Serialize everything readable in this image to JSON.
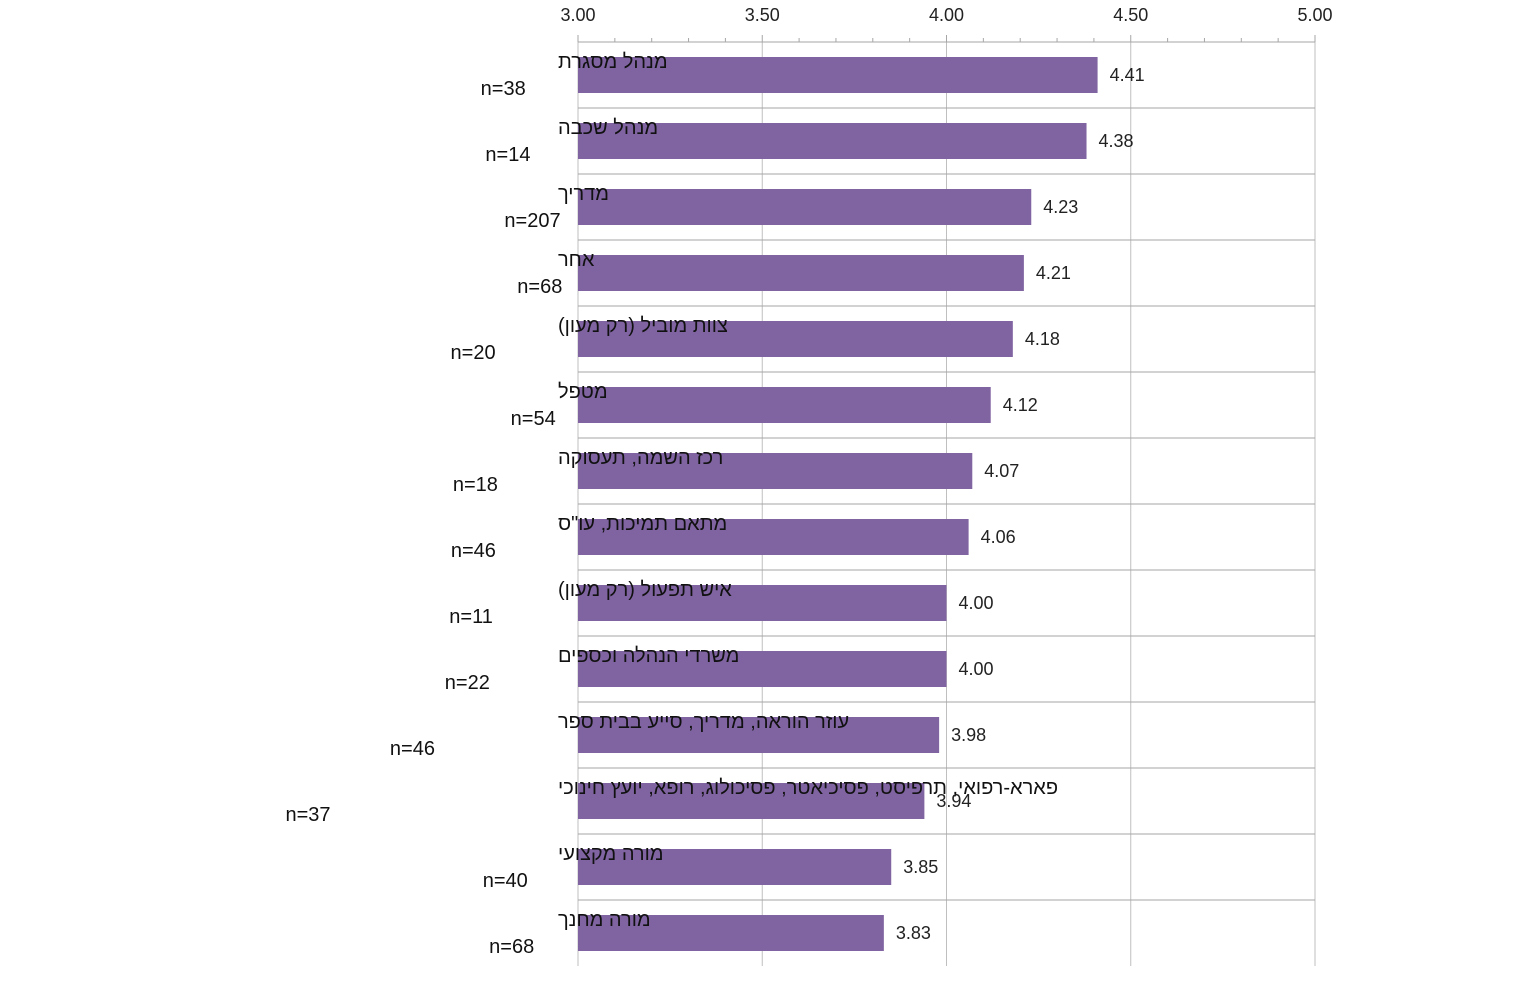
{
  "chart_data": {
    "type": "bar",
    "orientation": "horizontal",
    "title": "",
    "xlabel": "",
    "ylabel": "",
    "xlim": [
      3.0,
      5.0
    ],
    "x_ticks": [
      "3.00",
      "3.50",
      "4.00",
      "4.50",
      "5.00"
    ],
    "x_axis_position": "top",
    "grid": true,
    "legend": "none",
    "bar_color": "#8064A2",
    "categories": [
      {
        "name": "מנהל מסגרת",
        "n": "n=38"
      },
      {
        "name": "מנהל שכבה",
        "n": "n=14"
      },
      {
        "name": "מדריך",
        "n": "n=207"
      },
      {
        "name": "אחר",
        "n": "n=68"
      },
      {
        "name": "צוות מוביל (רק מעון)",
        "n": "n=20"
      },
      {
        "name": "מטפל",
        "n": "n=54"
      },
      {
        "name": "רכז השמה, תעסוקה",
        "n": "n=18"
      },
      {
        "name": "מתאם תמיכות, עו\"ס",
        "n": "n=46"
      },
      {
        "name": "איש תפעול (רק מעון)",
        "n": "n=11"
      },
      {
        "name": "משרדי הנהלה וכספים",
        "n": "n=22"
      },
      {
        "name": "עוזר הוראה, מדריך, סייע בבית ספר",
        "n": "n=46"
      },
      {
        "name": "פארא-רפואי, תרפיסט, פסיכיאטר, פסיכולוג, רופא, יועץ חינוכי",
        "n": "n=37"
      },
      {
        "name": "מורה מקצועי",
        "n": "n=40"
      },
      {
        "name": "מורה מחנך",
        "n": "n=68"
      }
    ],
    "values": [
      4.41,
      4.38,
      4.23,
      4.21,
      4.18,
      4.12,
      4.07,
      4.06,
      4.0,
      4.0,
      3.98,
      3.94,
      3.85,
      3.83
    ],
    "value_labels": [
      "4.41",
      "4.38",
      "4.23",
      "4.21",
      "4.18",
      "4.12",
      "4.07",
      "4.06",
      "4.00",
      "4.00",
      "3.98",
      "3.94",
      "3.85",
      "3.83"
    ]
  }
}
